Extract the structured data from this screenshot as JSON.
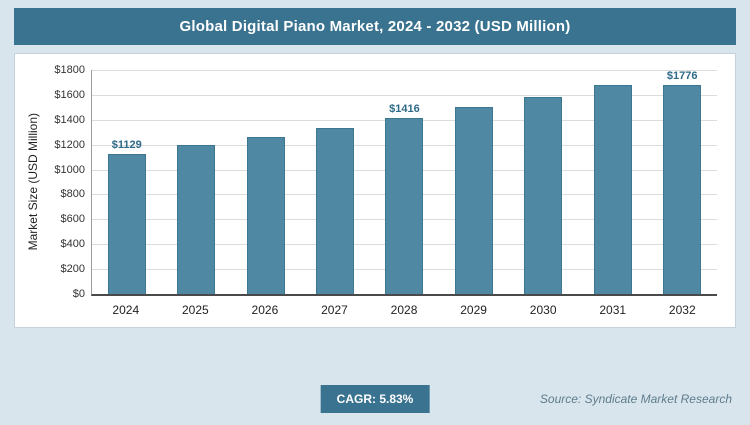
{
  "header": {
    "title": "Global Digital Piano Market, 2024 - 2032 (USD Million)"
  },
  "chart_data": {
    "type": "bar",
    "categories": [
      "2024",
      "2025",
      "2026",
      "2027",
      "2028",
      "2029",
      "2030",
      "2031",
      "2032"
    ],
    "values": [
      1129,
      1195,
      1264,
      1338,
      1416,
      1499,
      1586,
      1679,
      1776
    ],
    "data_labels": {
      "0": "$1129",
      "4": "$1416",
      "8": "$1776"
    },
    "title": "Global Digital Piano Market, 2024 - 2032 (USD Million)",
    "xlabel": "",
    "ylabel": "Market Size (USD Million)",
    "ylim": [
      0,
      1800
    ],
    "ytick_step": 200,
    "ytick_prefix": "$",
    "grid": "horizontal",
    "legend": "none",
    "bar_color": "#4e88a3",
    "bar_border_color": "#3c7690",
    "label_color": "#2e6a88"
  },
  "footer": {
    "cagr_label": "CAGR: 5.83%",
    "source": "Source: Syndicate Market Research"
  }
}
